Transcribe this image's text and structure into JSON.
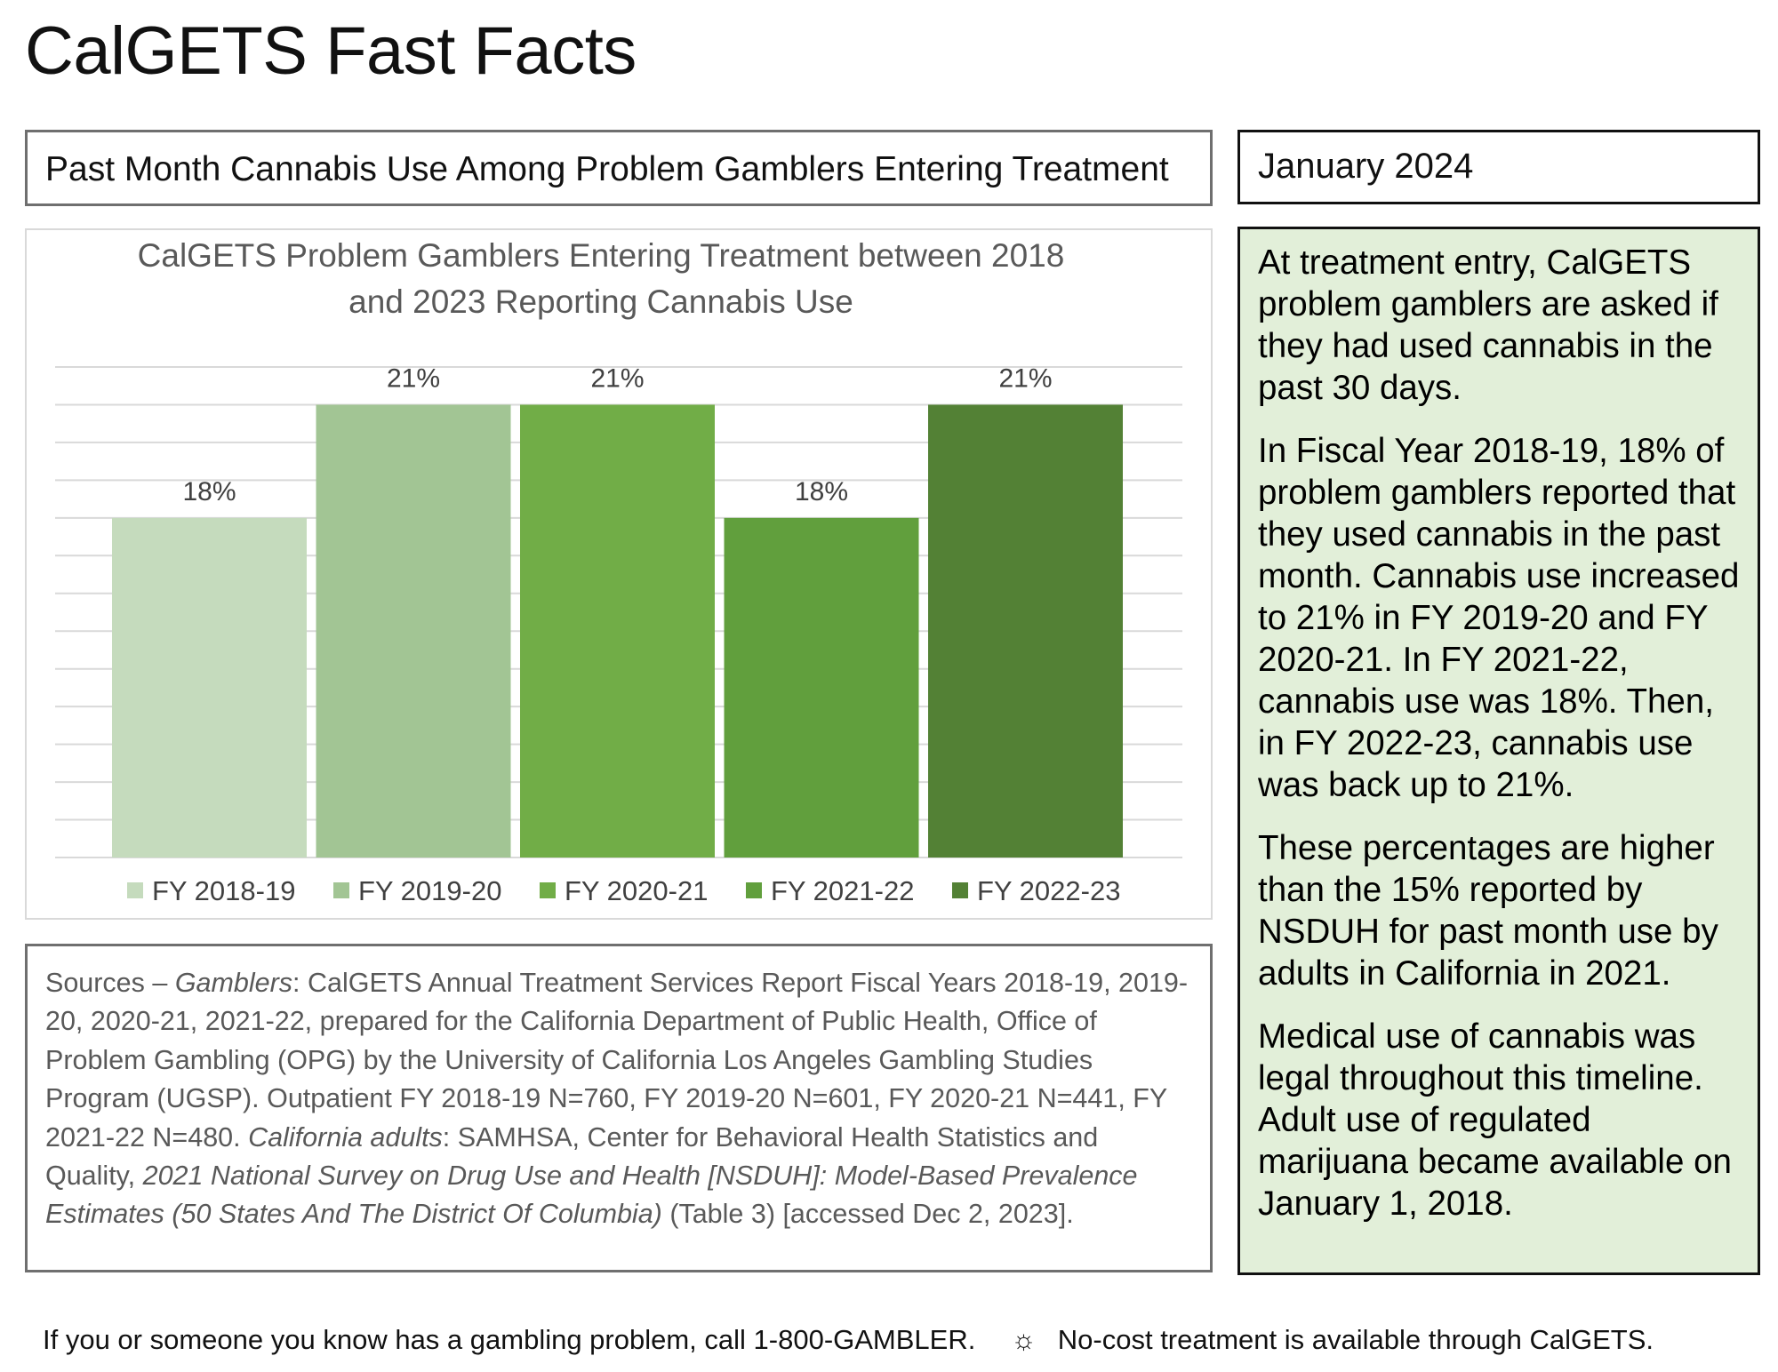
{
  "page": {
    "title": "CalGETS Fast Facts",
    "subject": "Past Month Cannabis Use Among Problem Gamblers Entering Treatment",
    "date": "January 2024"
  },
  "chart_data": {
    "type": "bar",
    "title_line1": "CalGETS Problem Gamblers Entering Treatment between 2018",
    "title_line2": "and 2023 Reporting Cannabis Use",
    "categories": [
      "FY 2018-19",
      "FY 2019-20",
      "FY 2020-21",
      "FY 2021-22",
      "FY 2022-23"
    ],
    "values": [
      18,
      21,
      21,
      18,
      21
    ],
    "data_labels": [
      "18%",
      "21%",
      "21%",
      "18%",
      "21%"
    ],
    "colors": [
      "#c5dbbd",
      "#a2c594",
      "#71ad47",
      "#619f3d",
      "#538135"
    ],
    "xlabel": "",
    "ylabel": "",
    "ylim": [
      9,
      22
    ],
    "grid": true,
    "legend_position": "bottom"
  },
  "summary": {
    "p1": "At treatment entry, CalGETS problem gamblers are asked if they had used cannabis in the past 30 days.",
    "p2": "In Fiscal Year 2018-19, 18% of problem gamblers reported that they used cannabis in the past month. Cannabis use increased to 21% in FY 2019-20 and FY 2020-21. In FY 2021-22, cannabis use was 18%. Then, in FY 2022-23, cannabis use was back up to 21%.",
    "p3": "These percentages are higher than the 15% reported by NSDUH for past month use by adults in California in 2021.",
    "p4": "Medical use of cannabis was legal throughout this timeline. Adult use of regulated marijuana became available on January 1, 2018."
  },
  "sources": {
    "s1": "Sources – ",
    "s2": "Gamblers",
    "s3": ": CalGETS Annual Treatment Services Report Fiscal Years 2018-19, 2019-20, 2020-21, 2021-22, prepared for the California Department of Public Health, Office of Problem Gambling (OPG) by the University of California Los Angeles Gambling Studies Program (UGSP). Outpatient FY 2018-19 N=760, FY 2019-20 N=601, FY 2020-21 N=441, FY 2021-22 N=480. ",
    "s4": "California adults",
    "s5": ": SAMHSA, Center for Behavioral Health Statistics and Quality, ",
    "s6": "2021 National Survey on Drug Use and Health [NSDUH]: Model-Based Prevalence Estimates (50 States And The District Of Columbia)",
    "s7": " (Table 3) [accessed Dec 2, 2023]."
  },
  "footer": {
    "left": "If you or someone you know has a gambling problem, call 1-800-GAMBLER.",
    "separator": "☼",
    "right": "No-cost treatment is available through CalGETS."
  }
}
